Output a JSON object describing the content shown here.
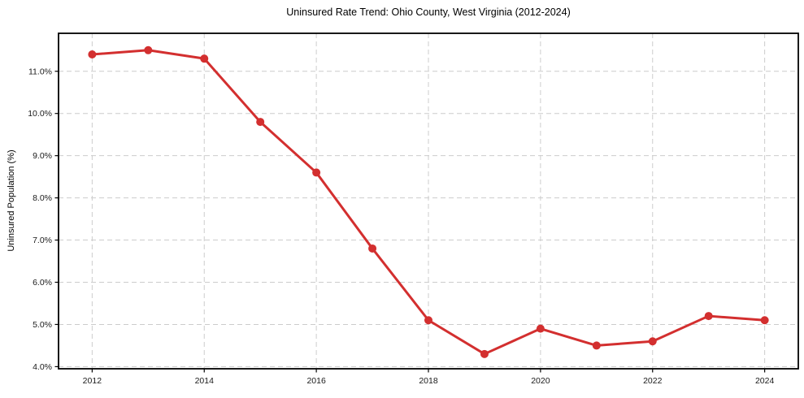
{
  "chart_data": {
    "type": "line",
    "title": "Uninsured Rate Trend: Ohio County, West Virginia (2012-2024)",
    "xlabel": "",
    "ylabel": "Uninsured Population (%)",
    "x": [
      2012,
      2013,
      2014,
      2015,
      2016,
      2017,
      2018,
      2019,
      2020,
      2021,
      2022,
      2023,
      2024
    ],
    "values": [
      11.4,
      11.5,
      11.3,
      9.8,
      8.6,
      6.8,
      5.1,
      4.3,
      4.9,
      4.5,
      4.6,
      5.2,
      5.1
    ],
    "unit": "%",
    "xlim": [
      2011.4,
      2024.6
    ],
    "ylim": [
      3.95,
      11.9
    ],
    "xticks": {
      "values": [
        2012,
        2014,
        2016,
        2018,
        2020,
        2022,
        2024
      ],
      "labels": [
        "2012",
        "2014",
        "2016",
        "2018",
        "2020",
        "2022",
        "2024"
      ]
    },
    "yticks": {
      "values": [
        4,
        5,
        6,
        7,
        8,
        9,
        10,
        11
      ],
      "labels": [
        "4.0%",
        "5.0%",
        "6.0%",
        "7.0%",
        "8.0%",
        "9.0%",
        "10.0%",
        "11.0%"
      ]
    },
    "grid": true,
    "grid_style": "dashed",
    "legend_position": "none",
    "marker": "circle",
    "colors": {
      "line": "#d32f2f",
      "marker": "#d32f2f",
      "grid": "#cccccc",
      "axis": "#000000",
      "text": "#1a1a1a",
      "background": "#ffffff"
    }
  }
}
